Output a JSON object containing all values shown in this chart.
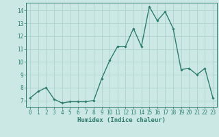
{
  "x": [
    0,
    1,
    2,
    3,
    4,
    5,
    6,
    7,
    8,
    9,
    10,
    11,
    12,
    13,
    14,
    15,
    16,
    17,
    18,
    19,
    20,
    21,
    22,
    23
  ],
  "y": [
    7.2,
    7.7,
    8.0,
    7.1,
    6.8,
    6.9,
    6.9,
    6.9,
    7.0,
    8.7,
    10.1,
    11.2,
    11.2,
    12.6,
    11.2,
    14.3,
    13.2,
    13.9,
    12.6,
    9.4,
    9.5,
    9.0,
    9.5,
    7.2
  ],
  "line_color": "#2e7d6e",
  "marker": "D",
  "markersize": 1.8,
  "linewidth": 1.0,
  "bg_color": "#cce8e4",
  "grid_color": "#aacfca",
  "xlabel": "Humidex (Indice chaleur)",
  "ylim": [
    6.5,
    14.6
  ],
  "xlim": [
    -0.5,
    23.5
  ],
  "yticks": [
    7,
    8,
    9,
    10,
    11,
    12,
    13,
    14
  ],
  "xticks": [
    0,
    1,
    2,
    3,
    4,
    5,
    6,
    7,
    8,
    9,
    10,
    11,
    12,
    13,
    14,
    15,
    16,
    17,
    18,
    19,
    20,
    21,
    22,
    23
  ],
  "tick_color": "#2e7d6e",
  "label_fontsize": 5.5,
  "xlabel_fontsize": 6.5
}
